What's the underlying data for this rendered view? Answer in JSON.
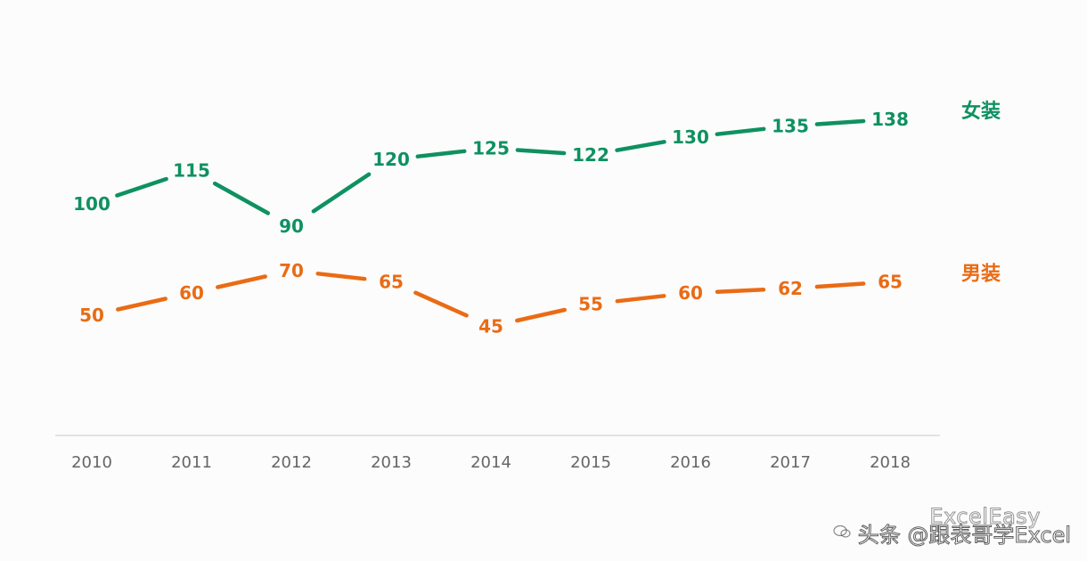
{
  "chart_data": {
    "type": "line",
    "categories": [
      "2010",
      "2011",
      "2012",
      "2013",
      "2014",
      "2015",
      "2016",
      "2017",
      "2018"
    ],
    "series": [
      {
        "name": "女装",
        "color": "#0e9160",
        "values": [
          100,
          115,
          90,
          120,
          125,
          122,
          130,
          135,
          138
        ]
      },
      {
        "name": "男装",
        "color": "#ea6b14",
        "values": [
          50,
          60,
          70,
          65,
          45,
          55,
          60,
          62,
          65
        ]
      }
    ],
    "title": "",
    "xlabel": "",
    "ylabel": "",
    "ylim": [
      0,
      150
    ],
    "grid": false,
    "legend": "right, at line ends"
  },
  "watermark": {
    "brand": "ExcelEasy",
    "attribution": "头条 @跟表哥学Excel",
    "icon": "wechat-icon"
  }
}
